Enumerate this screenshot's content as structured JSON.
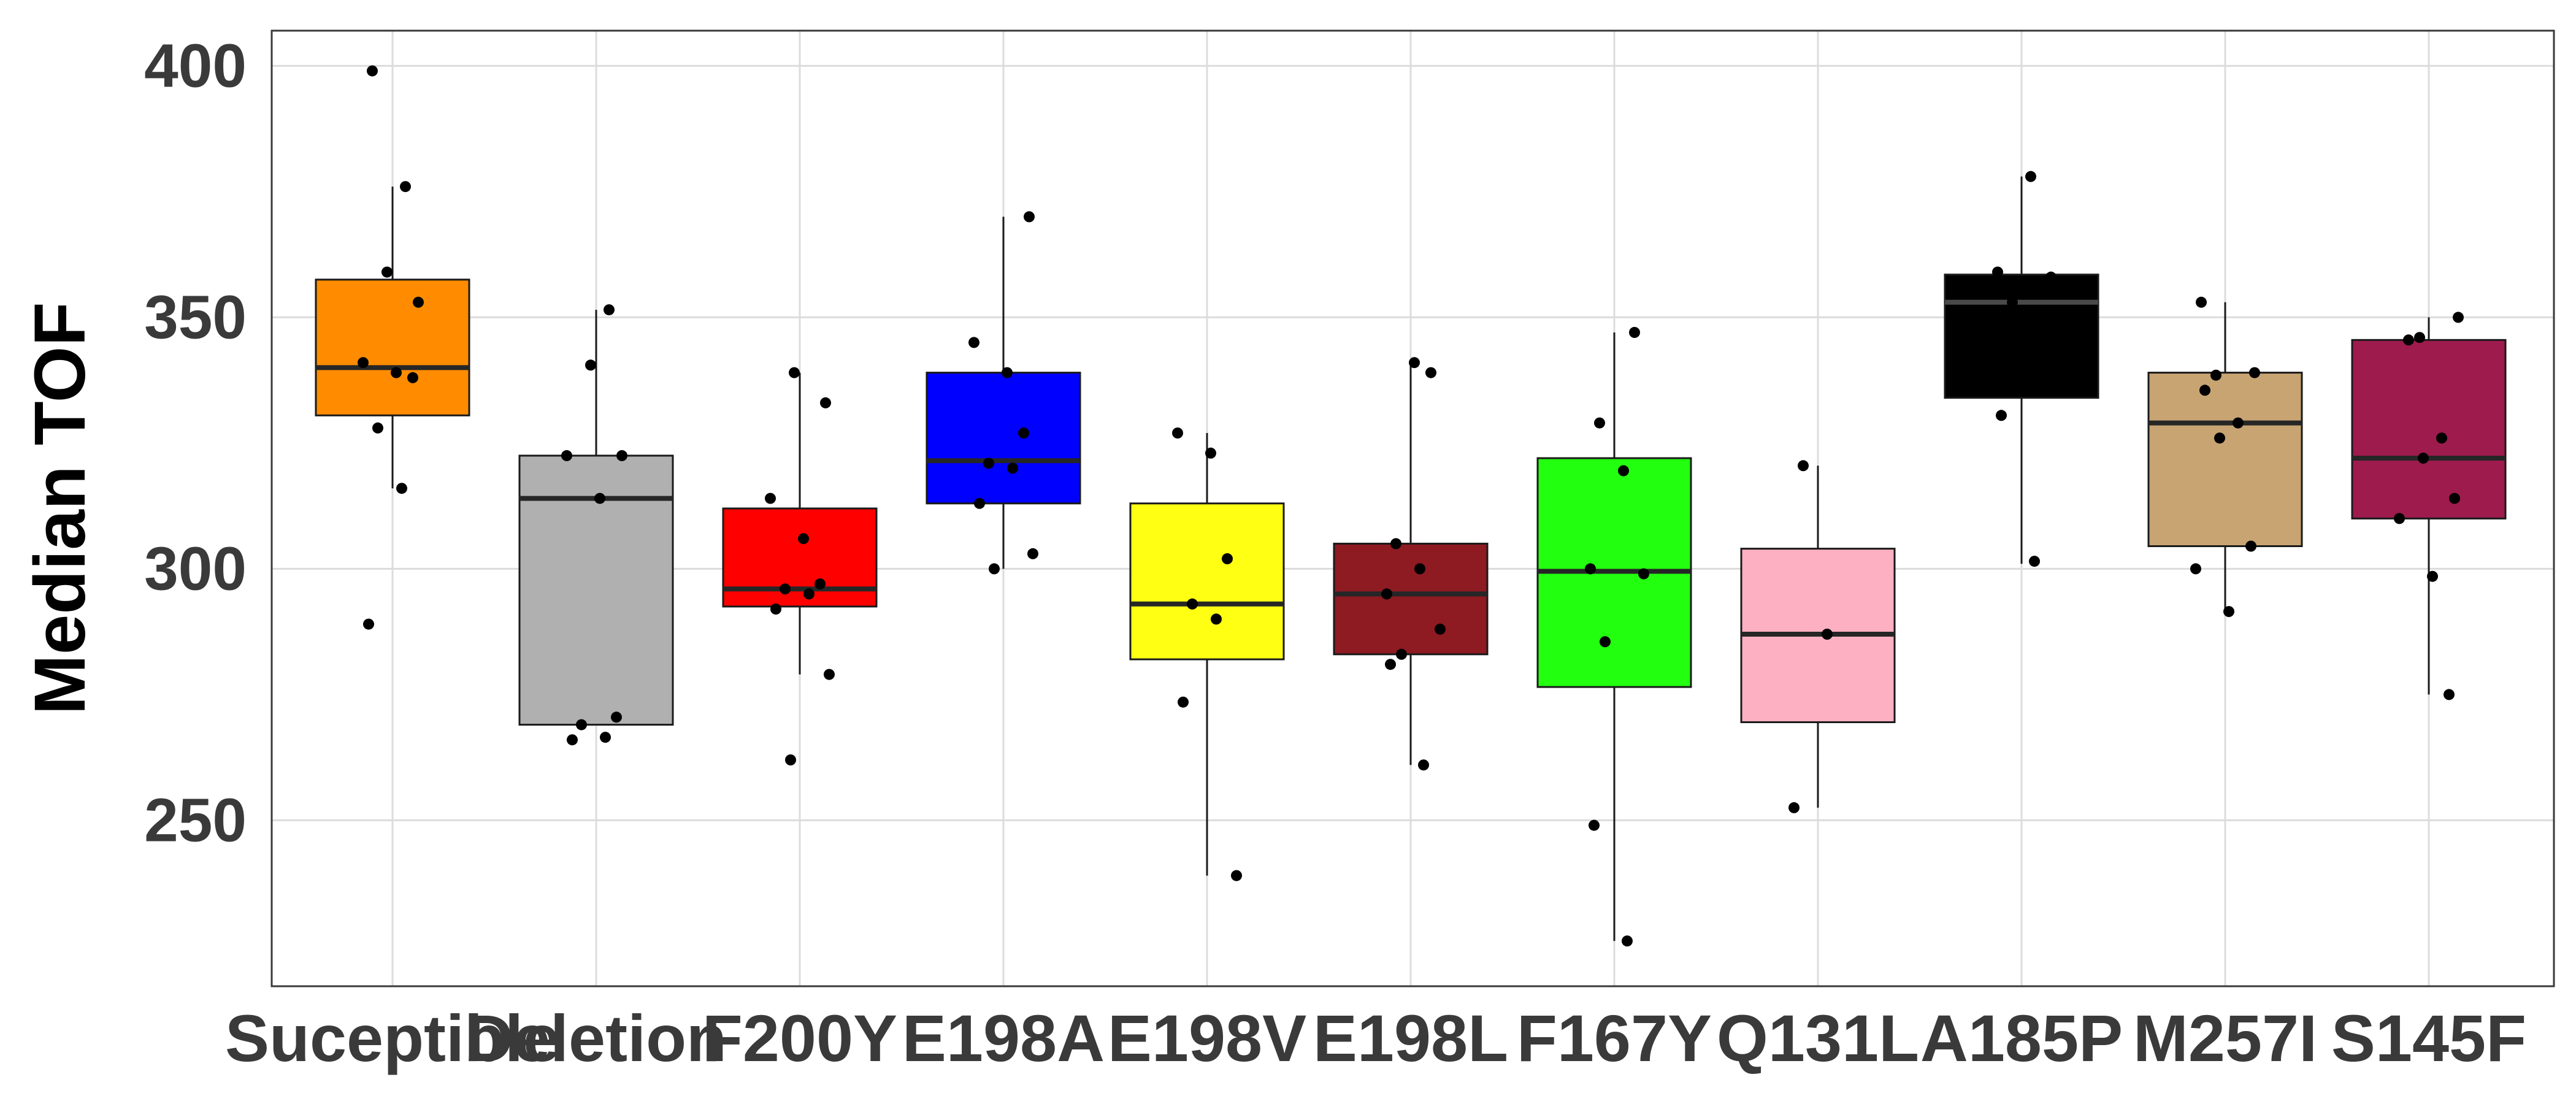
{
  "chart_data": {
    "type": "box",
    "xlabel": "",
    "ylabel": "Median TOF",
    "ylim": [
      217,
      407
    ],
    "yticks": [
      250,
      300,
      350,
      400
    ],
    "grid": true,
    "legend": "none",
    "categories": [
      "Suceptible",
      "Deletion",
      "F200Y",
      "E198A",
      "E198V",
      "E198L",
      "F167Y",
      "Q131L",
      "A185P",
      "M257I",
      "S145F"
    ],
    "fill_colors": [
      "#ff8c00",
      "#b0b0b0",
      "#ff0000",
      "#0000ff",
      "#ffff14",
      "#8e1a22",
      "#22ff0f",
      "#fdb0c1",
      "#000000",
      "#c8a473",
      "#9e1b4d"
    ],
    "boxes": [
      {
        "category": "Suceptible",
        "lower_whisker": 316,
        "q1": 330.5,
        "median": 340,
        "q3": 357.5,
        "upper_whisker": 376,
        "points": [
          399,
          376,
          359,
          353,
          341,
          339,
          338,
          328,
          316,
          289
        ]
      },
      {
        "category": "Deletion",
        "lower_whisker": 269,
        "q1": 269,
        "median": 314,
        "q3": 322.5,
        "upper_whisker": 351.5,
        "points": [
          351.5,
          340.5,
          322.5,
          322.5,
          314,
          270.5,
          269,
          266.5,
          266
        ]
      },
      {
        "category": "F200Y",
        "lower_whisker": 279,
        "q1": 292.5,
        "median": 296,
        "q3": 312,
        "upper_whisker": 339,
        "points": [
          339,
          333,
          314,
          306,
          297,
          296,
          295,
          292,
          279,
          262
        ]
      },
      {
        "category": "E198A",
        "lower_whisker": 300,
        "q1": 313,
        "median": 321.5,
        "q3": 339,
        "upper_whisker": 370,
        "points": [
          370,
          345,
          339,
          327,
          321,
          320,
          313,
          303,
          300
        ]
      },
      {
        "category": "E198V",
        "lower_whisker": 239,
        "q1": 282,
        "median": 293,
        "q3": 313,
        "upper_whisker": 327,
        "points": [
          327,
          323,
          302,
          293,
          290,
          273.5,
          239
        ]
      },
      {
        "category": "E198L",
        "lower_whisker": 261,
        "q1": 283,
        "median": 295,
        "q3": 305,
        "upper_whisker": 341,
        "points": [
          341,
          339,
          305,
          300,
          295,
          288,
          283,
          281,
          261
        ]
      },
      {
        "category": "F167Y",
        "lower_whisker": 226,
        "q1": 276.5,
        "median": 299.5,
        "q3": 322,
        "upper_whisker": 347,
        "points": [
          347,
          329,
          319.5,
          300,
          299,
          285.5,
          249,
          226
        ]
      },
      {
        "category": "Q131L",
        "lower_whisker": 252.5,
        "q1": 269.5,
        "median": 287,
        "q3": 304,
        "upper_whisker": 320.5,
        "points": [
          320.5,
          287,
          252.5
        ]
      },
      {
        "category": "A185P",
        "lower_whisker": 301,
        "q1": 334,
        "median": 353,
        "q3": 358.5,
        "upper_whisker": 378,
        "points": [
          378,
          359,
          358,
          353,
          330.5,
          301.5
        ]
      },
      {
        "category": "M257I",
        "lower_whisker": 291.5,
        "q1": 304.5,
        "median": 329,
        "q3": 339,
        "upper_whisker": 353,
        "points": [
          353,
          339,
          338.5,
          335.5,
          329,
          326,
          304.5,
          300,
          291.5
        ]
      },
      {
        "category": "S145F",
        "lower_whisker": 275,
        "q1": 310,
        "median": 322,
        "q3": 345.5,
        "upper_whisker": 350,
        "points": [
          350,
          346,
          345.5,
          326,
          322,
          314,
          310,
          298.5,
          275
        ]
      }
    ]
  }
}
